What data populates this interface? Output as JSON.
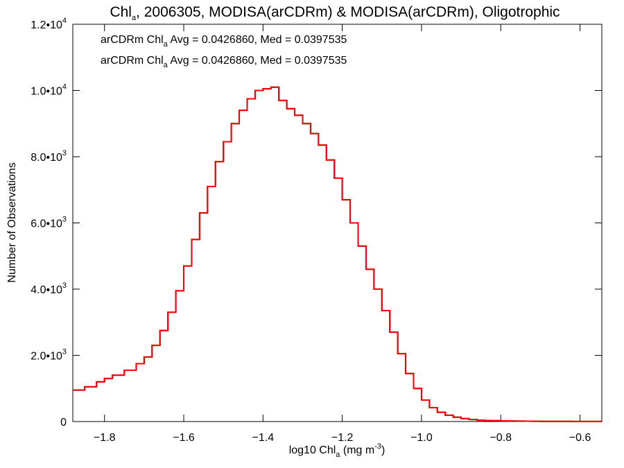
{
  "chart_data": {
    "type": "line",
    "title": {
      "prefix": "Chl",
      "prefix_sub": "a",
      "rest": ", 2006305, MODISA(arCDRm) & MODISA(arCDRm), Oligotrophic"
    },
    "xlabel": {
      "before": "log10 Chl",
      "sub": "a",
      "middle": " (mg m",
      "sup": "-3",
      "after": ")"
    },
    "ylabel": "Number of Observations",
    "xlim": [
      -1.88,
      -0.545
    ],
    "ylim": [
      0,
      12000
    ],
    "x_ticks": [
      {
        "value": -1.8,
        "label": "−1.8"
      },
      {
        "value": -1.6,
        "label": "−1.6"
      },
      {
        "value": -1.4,
        "label": "−1.4"
      },
      {
        "value": -1.2,
        "label": "−1.2"
      },
      {
        "value": -1.0,
        "label": "−1.0"
      },
      {
        "value": -0.8,
        "label": "−0.8"
      },
      {
        "value": -0.6,
        "label": "−0.6"
      }
    ],
    "y_ticks": [
      {
        "value": 0,
        "mantissa": "0",
        "exp": ""
      },
      {
        "value": 2000,
        "mantissa": "2.0•10",
        "exp": "3"
      },
      {
        "value": 4000,
        "mantissa": "4.0•10",
        "exp": "3"
      },
      {
        "value": 6000,
        "mantissa": "6.0•10",
        "exp": "3"
      },
      {
        "value": 8000,
        "mantissa": "8.0•10",
        "exp": "3"
      },
      {
        "value": 10000,
        "mantissa": "1.0•10",
        "exp": "4"
      },
      {
        "value": 12000,
        "mantissa": "1.2•10",
        "exp": "4"
      }
    ],
    "annotations": [
      {
        "label_a": "arCDRm Chl",
        "label_sub": "a",
        "label_b": " Avg = 0.0426860, Med = 0.0397535",
        "color": "#000000"
      },
      {
        "label_a": "arCDRm Chl",
        "label_sub": "a",
        "label_b": " Avg = 0.0426860, Med = 0.0397535",
        "color": "#ff0000"
      }
    ],
    "series": [
      {
        "color": "#000000",
        "x": [
          -1.88,
          -1.85,
          -1.82,
          -1.8,
          -1.78,
          -1.75,
          -1.72,
          -1.7,
          -1.68,
          -1.66,
          -1.64,
          -1.62,
          -1.6,
          -1.58,
          -1.56,
          -1.54,
          -1.52,
          -1.5,
          -1.48,
          -1.46,
          -1.44,
          -1.42,
          -1.4,
          -1.38,
          -1.36,
          -1.34,
          -1.32,
          -1.3,
          -1.28,
          -1.26,
          -1.24,
          -1.22,
          -1.2,
          -1.18,
          -1.16,
          -1.14,
          -1.12,
          -1.1,
          -1.08,
          -1.06,
          -1.04,
          -1.02,
          -1.0,
          -0.98,
          -0.96,
          -0.94,
          -0.92,
          -0.9,
          -0.88,
          -0.86,
          -0.84,
          -0.82,
          -0.8,
          -0.78,
          -0.76,
          -0.74,
          -0.72,
          -0.7,
          -0.68,
          -0.66,
          -0.64,
          -0.62,
          -0.6,
          -0.58,
          -0.56,
          -0.545
        ],
        "y": [
          950,
          1050,
          1200,
          1300,
          1400,
          1550,
          1750,
          1950,
          2300,
          2750,
          3300,
          3950,
          4700,
          5500,
          6300,
          7100,
          7850,
          8450,
          9000,
          9400,
          9750,
          10000,
          10050,
          10100,
          9700,
          9450,
          9250,
          9000,
          8700,
          8350,
          7900,
          7350,
          6700,
          6000,
          5300,
          4600,
          4000,
          3350,
          2700,
          2050,
          1450,
          1000,
          650,
          420,
          280,
          190,
          130,
          90,
          60,
          40,
          30,
          25,
          20,
          15,
          12,
          10,
          8,
          6,
          5,
          4,
          4,
          3,
          3,
          2,
          2,
          2
        ]
      },
      {
        "color": "#ff0000",
        "x": [
          -1.88,
          -1.85,
          -1.82,
          -1.8,
          -1.78,
          -1.75,
          -1.72,
          -1.7,
          -1.68,
          -1.66,
          -1.64,
          -1.62,
          -1.6,
          -1.58,
          -1.56,
          -1.54,
          -1.52,
          -1.5,
          -1.48,
          -1.46,
          -1.44,
          -1.42,
          -1.4,
          -1.38,
          -1.36,
          -1.34,
          -1.32,
          -1.3,
          -1.28,
          -1.26,
          -1.24,
          -1.22,
          -1.2,
          -1.18,
          -1.16,
          -1.14,
          -1.12,
          -1.1,
          -1.08,
          -1.06,
          -1.04,
          -1.02,
          -1.0,
          -0.98,
          -0.96,
          -0.94,
          -0.92,
          -0.9,
          -0.88,
          -0.86,
          -0.84,
          -0.82,
          -0.8,
          -0.78,
          -0.76,
          -0.74,
          -0.72,
          -0.7,
          -0.68,
          -0.66,
          -0.64,
          -0.62,
          -0.6,
          -0.58,
          -0.56,
          -0.545
        ],
        "y": [
          950,
          1050,
          1200,
          1300,
          1400,
          1550,
          1750,
          1950,
          2300,
          2750,
          3300,
          3950,
          4700,
          5500,
          6300,
          7100,
          7850,
          8450,
          9000,
          9400,
          9750,
          10000,
          10050,
          10100,
          9700,
          9450,
          9250,
          9000,
          8700,
          8350,
          7900,
          7350,
          6700,
          6000,
          5300,
          4600,
          4000,
          3350,
          2700,
          2050,
          1450,
          1000,
          650,
          420,
          280,
          190,
          130,
          90,
          60,
          40,
          30,
          25,
          20,
          15,
          12,
          10,
          8,
          6,
          5,
          4,
          4,
          3,
          3,
          2,
          2,
          2
        ]
      }
    ]
  }
}
